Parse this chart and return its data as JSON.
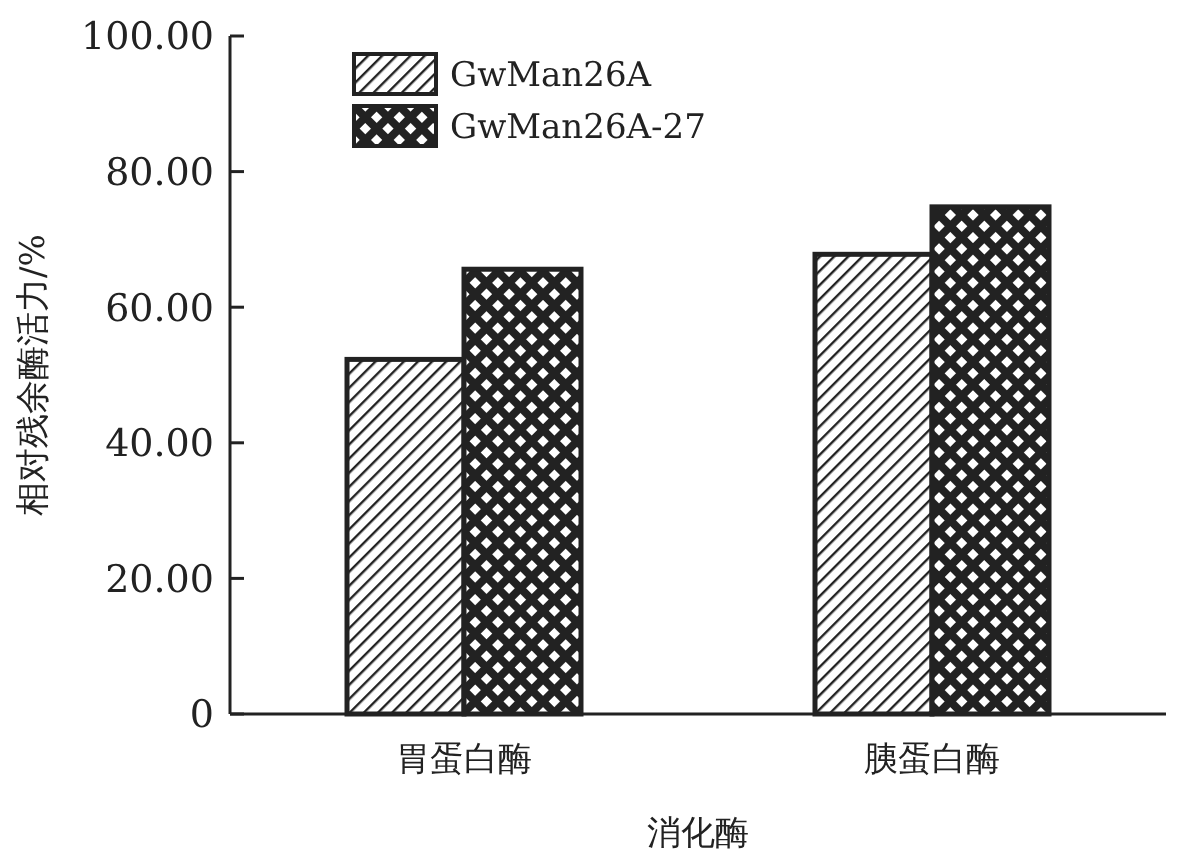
{
  "chart_data": {
    "type": "bar",
    "xlabel": "消化酶",
    "ylabel": "相对残余酶活力/%",
    "categories": [
      "胃蛋白酶",
      "胰蛋白酶"
    ],
    "series": [
      {
        "name": "GwMan26A",
        "color": "#222222",
        "values": [
          52.3,
          67.8
        ]
      },
      {
        "name": "GwMan26A-27",
        "color": "#222222",
        "values": [
          65.6,
          74.8
        ]
      }
    ],
    "ylim": [
      0,
      100
    ],
    "yticks": [
      {
        "value": 0,
        "label": "0"
      },
      {
        "value": 20,
        "label": "20.00"
      },
      {
        "value": 40,
        "label": "40.00"
      },
      {
        "value": 60,
        "label": "60.00"
      },
      {
        "value": 80,
        "label": "80.00"
      },
      {
        "value": 100,
        "label": "100.00"
      }
    ],
    "grid": false,
    "legend": "top left"
  }
}
